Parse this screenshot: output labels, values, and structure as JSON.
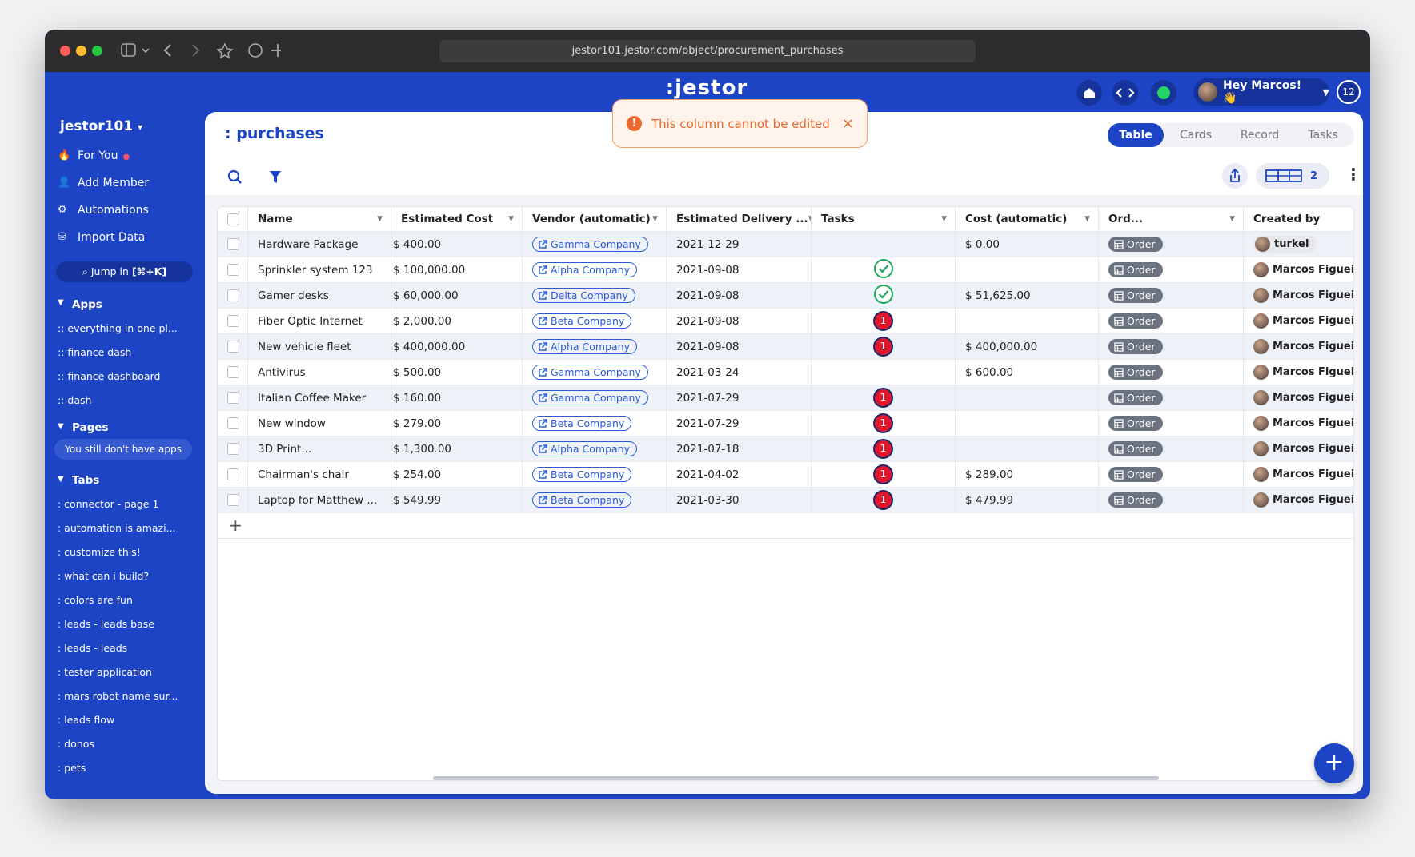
{
  "browser": {
    "url": "jestor101.jestor.com/object/procurement_purchases"
  },
  "topbar": {
    "logo": ":jestor",
    "greeting": "Hey Marcos! 👋",
    "notifications": "12"
  },
  "sidebar": {
    "workspace": "jestor101",
    "nav": [
      "For You",
      "Add Member",
      "Automations",
      "Import Data"
    ],
    "jump": "Jump in",
    "jump_shortcut": "[⌘+K]",
    "apps_heading": "Apps",
    "apps": [
      ":: everything in one pl...",
      ":: finance dash",
      ":: finance dashboard",
      ":: dash"
    ],
    "pages_heading": "Pages",
    "pages_note": "You still don't have apps",
    "tabs_heading": "Tabs",
    "tabs": [
      ": connector - page 1",
      ": automation is amazi...",
      ": customize this!",
      ": what can i build?",
      ": colors are fun",
      ": leads - leads base",
      ": leads - leads",
      ": tester application",
      ": mars robot name sur...",
      ": leads flow",
      ": donos",
      ": pets"
    ]
  },
  "toast": {
    "message": "This column cannot be edited"
  },
  "header": {
    "title": ": purchases",
    "views": [
      "Table",
      "Cards",
      "Record",
      "Tasks"
    ],
    "active_view": 0,
    "columns_count": "2"
  },
  "table": {
    "columns": [
      "Name",
      "Estimated Cost",
      "Vendor (automatic)",
      "Estimated Delivery ...",
      "Tasks",
      "Cost (automatic)",
      "Ord...",
      "Created by"
    ],
    "rows": [
      [
        "Hardware Package",
        "$ 400.00",
        "Gamma Company",
        "2021-12-29",
        null,
        "$ 0.00",
        "Order",
        "turkel"
      ],
      [
        "Sprinkler system 123",
        "$ 100,000.00",
        "Alpha Company",
        "2021-09-08",
        null,
        null,
        "Order",
        "Marcos Figueire"
      ],
      [
        "Gamer desks",
        "$ 60,000.00",
        "Delta Company",
        "2021-09-08",
        null,
        "$ 51,625.00",
        "Order",
        "Marcos Figueire"
      ],
      [
        "Fiber Optic Internet",
        "$ 2,000.00",
        "Beta Company",
        "2021-09-08",
        "1",
        null,
        "Order",
        "Marcos Figueire"
      ],
      [
        "New vehicle fleet",
        "$ 400,000.00",
        "Alpha Company",
        "2021-09-08",
        "1",
        "$ 400,000.00",
        "Order",
        "Marcos Figueire"
      ],
      [
        "Antivirus",
        "$ 500.00",
        "Gamma Company",
        "2021-03-24",
        null,
        "$ 600.00",
        "Order",
        "Marcos Figueire"
      ],
      [
        "Italian Coffee Maker",
        "$ 160.00",
        "Gamma Company",
        "2021-07-29",
        "1",
        null,
        "Order",
        "Marcos Figueire"
      ],
      [
        "New window",
        "$ 279.00",
        "Beta Company",
        "2021-07-29",
        "1",
        null,
        "Order",
        "Marcos Figueire"
      ],
      [
        "3D Print...",
        "$ 1,300.00",
        "Alpha Company",
        "2021-07-18",
        "1",
        null,
        "Order",
        "Marcos Figueire"
      ],
      [
        "Chairman's chair",
        "$ 254.00",
        "Beta Company",
        "2021-04-02",
        "1",
        "$ 289.00",
        "Order",
        "Marcos Figueire"
      ],
      [
        "Laptop for Matthew ...",
        "$ 549.99",
        "Beta Company",
        "2021-03-30",
        "1",
        "$ 479.99",
        "Order",
        "Marcos Figueire"
      ]
    ],
    "tasks_done": [
      false,
      true,
      true,
      false,
      false,
      false,
      false,
      false,
      false,
      false,
      false
    ]
  }
}
